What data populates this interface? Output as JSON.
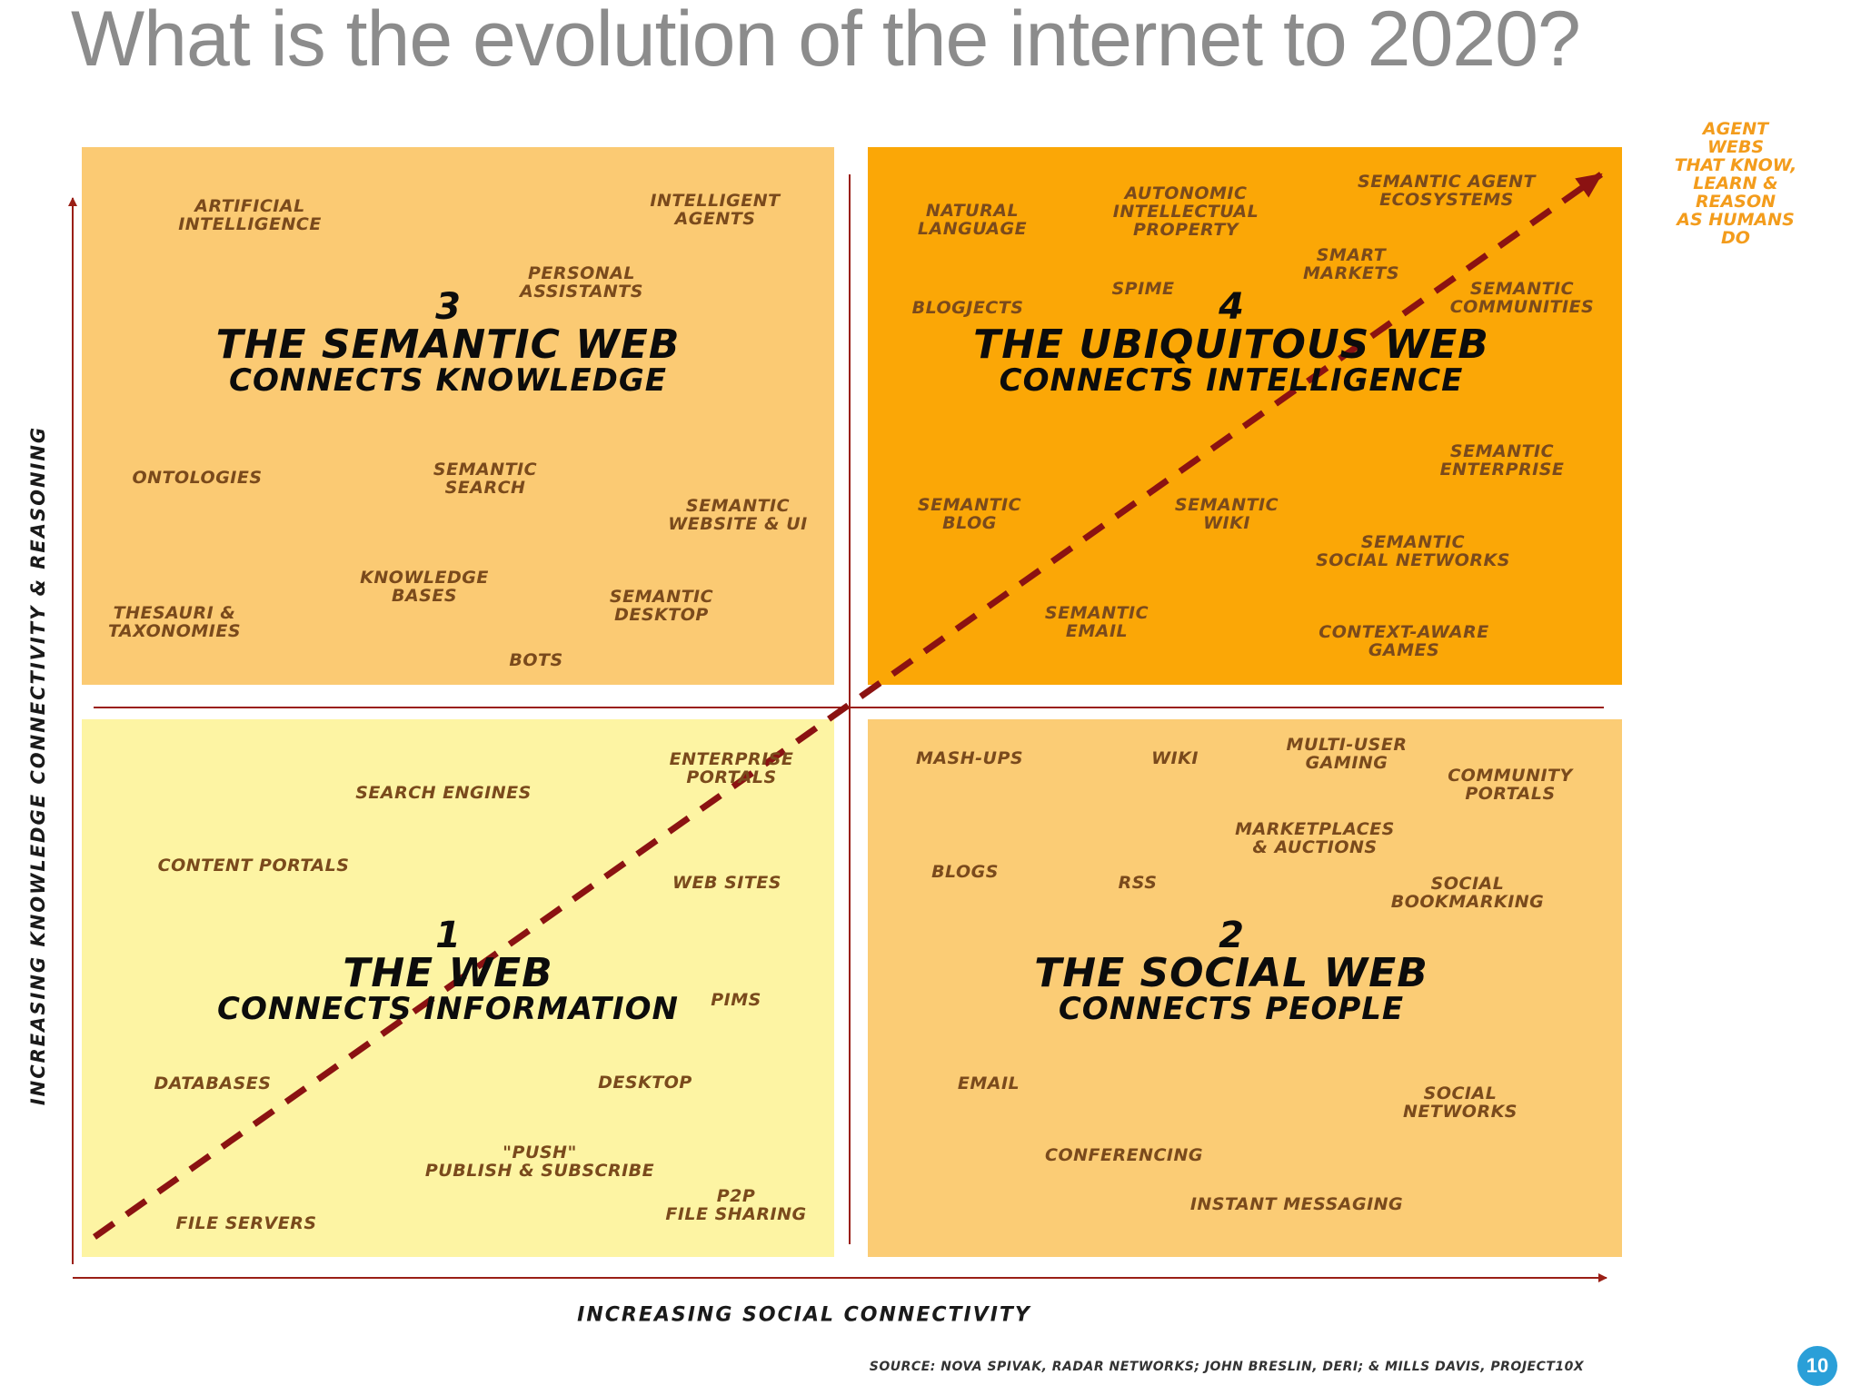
{
  "title": "What is the evolution of the internet to 2020?",
  "axes": {
    "y_label": "Increasing knowledge connectivity & reasoning",
    "x_label": "Increasing social connectivity"
  },
  "quadrants": {
    "q3": {
      "number": "3",
      "name": "The Semantic Web",
      "subtitle": "Connects Knowledge",
      "items": [
        "Artificial\nIntelligence",
        "Intelligent\nAgents",
        "Personal\nAssistants",
        "Ontologies",
        "Semantic\nSearch",
        "Semantic\nWebsite & UI",
        "Knowledge\nBases",
        "Semantic\nDesktop",
        "Thesauri &\nTaxonomies",
        "Bots"
      ]
    },
    "q4": {
      "number": "4",
      "name": "The Ubiquitous Web",
      "subtitle": "Connects Intelligence",
      "items": [
        "Natural\nLanguage",
        "Autonomic\nIntellectual\nProperty",
        "Semantic Agent\nEcosystems",
        "Smart\nMarkets",
        "Spime",
        "Blogjects",
        "Semantic\nCommunities",
        "Semantic\nEnterprise",
        "Semantic\nBlog",
        "Semantic\nWiki",
        "Semantic\nSocial Networks",
        "Semantic\nEmail",
        "Context-Aware\nGames"
      ]
    },
    "q1": {
      "number": "1",
      "name": "The Web",
      "subtitle": "Connects Information",
      "items": [
        "Enterprise\nPortals",
        "Search Engines",
        "Content Portals",
        "Web Sites",
        "PIMs",
        "Databases",
        "Desktop",
        "\"Push\"\nPublish & Subscribe",
        "P2P\nFile Sharing",
        "File Servers"
      ]
    },
    "q2": {
      "number": "2",
      "name": "The Social Web",
      "subtitle": "Connects People",
      "items": [
        "Mash-ups",
        "Wiki",
        "Multi-user\nGaming",
        "Community\nPortals",
        "Marketplaces\n& Auctions",
        "Blogs",
        "RSS",
        "Social\nBookmarking",
        "Email",
        "Social\nNetworks",
        "Conferencing",
        "Instant Messaging"
      ]
    }
  },
  "agent_note": "Agent webs\nthat know,\nlearn & reason\nas humans do",
  "source": "Source: Nova Spivak, Radar Networks; John Breslin, DERI; & Mills Davis, Project10X",
  "page_number": "10",
  "colors": {
    "q3_fill": "#fbca73",
    "q4_fill": "#fba706",
    "q1_fill": "#fdf4a3",
    "q2_fill": "#fbcc75",
    "axis_line": "#9a1f16",
    "dashed_arrow": "#8b1212",
    "agent_text": "#f39c1c"
  }
}
